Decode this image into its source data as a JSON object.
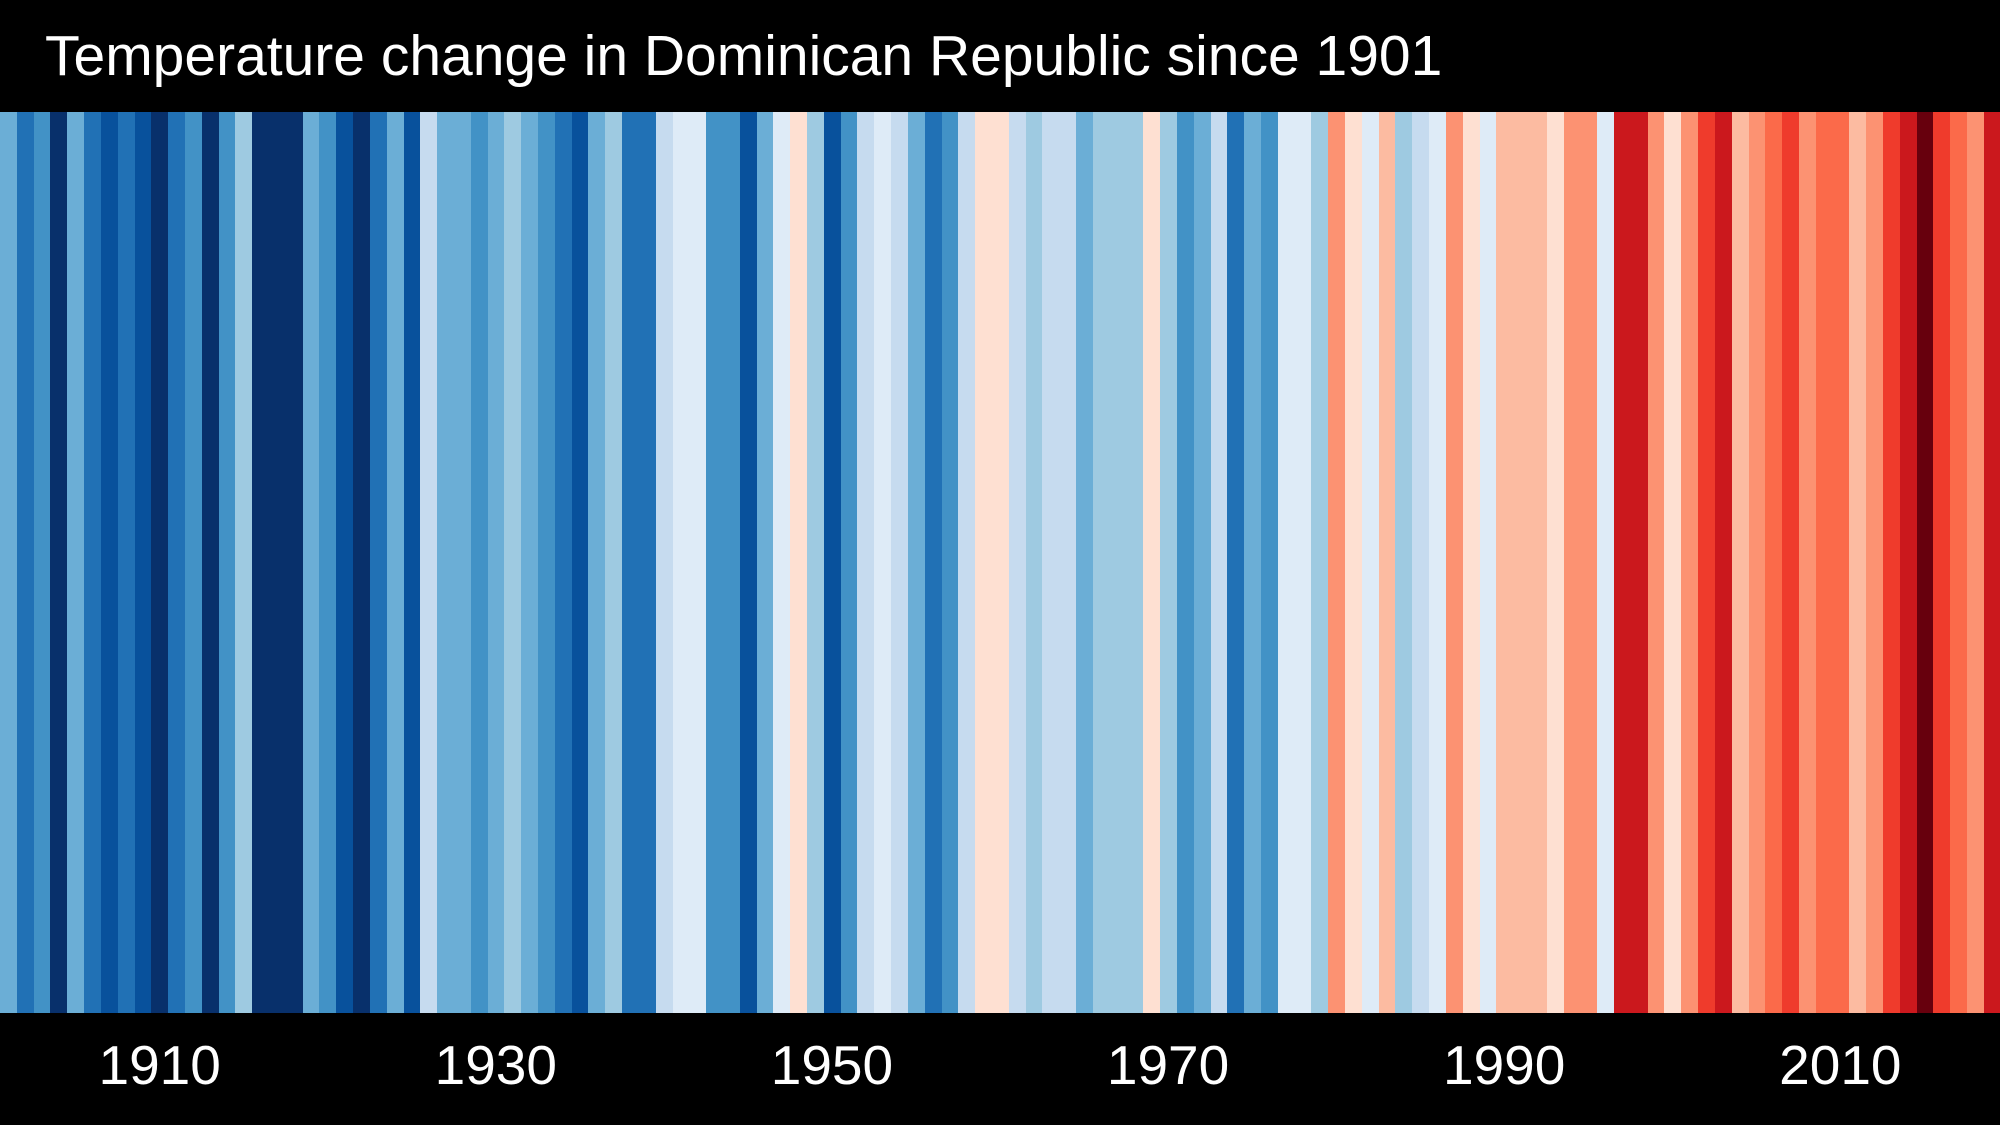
{
  "header": {
    "title": "Temperature change in Dominican Republic since 1901"
  },
  "colors": {
    "background": "#000000",
    "title_text": "#ffffff",
    "tick_text": "#ffffff"
  },
  "chart_data": {
    "type": "heatmap",
    "title": "Temperature change in Dominican Republic since 1901",
    "xlabel": "",
    "ylabel": "",
    "legend": "none",
    "grid": "off",
    "x_range": [
      1901,
      2019
    ],
    "x_ticks": [
      1910,
      1930,
      1950,
      1970,
      1990,
      2010
    ],
    "years": [
      1901,
      1902,
      1903,
      1904,
      1905,
      1906,
      1907,
      1908,
      1909,
      1910,
      1911,
      1912,
      1913,
      1914,
      1915,
      1916,
      1917,
      1918,
      1919,
      1920,
      1921,
      1922,
      1923,
      1924,
      1925,
      1926,
      1927,
      1928,
      1929,
      1930,
      1931,
      1932,
      1933,
      1934,
      1935,
      1936,
      1937,
      1938,
      1939,
      1940,
      1941,
      1942,
      1943,
      1944,
      1945,
      1946,
      1947,
      1948,
      1949,
      1950,
      1951,
      1952,
      1953,
      1954,
      1955,
      1956,
      1957,
      1958,
      1959,
      1960,
      1961,
      1962,
      1963,
      1964,
      1965,
      1966,
      1967,
      1968,
      1969,
      1970,
      1971,
      1972,
      1973,
      1974,
      1975,
      1976,
      1977,
      1978,
      1979,
      1980,
      1981,
      1982,
      1983,
      1984,
      1985,
      1986,
      1987,
      1988,
      1989,
      1990,
      1991,
      1992,
      1993,
      1994,
      1995,
      1996,
      1997,
      1998,
      1999,
      2000,
      2001,
      2002,
      2003,
      2004,
      2005,
      2006,
      2007,
      2008,
      2009,
      2010,
      2011,
      2012,
      2013,
      2014,
      2015,
      2016,
      2017,
      2018,
      2019
    ],
    "stripe_colors": [
      "#6baed6",
      "#2171b5",
      "#4292c6",
      "#08306b",
      "#6baed6",
      "#2171b5",
      "#08519c",
      "#2171b5",
      "#08519c",
      "#08306b",
      "#2171b5",
      "#4292c6",
      "#08306b",
      "#4292c6",
      "#9ecae1",
      "#08306b",
      "#08306b",
      "#08306b",
      "#6baed6",
      "#4292c6",
      "#08519c",
      "#08306b",
      "#2171b5",
      "#6baed6",
      "#08519c",
      "#c6dbef",
      "#6baed6",
      "#6baed6",
      "#4292c6",
      "#6baed6",
      "#9ecae1",
      "#6baed6",
      "#4292c6",
      "#2171b5",
      "#08519c",
      "#6baed6",
      "#9ecae1",
      "#2171b5",
      "#2171b5",
      "#c6dbef",
      "#deebf7",
      "#deebf7",
      "#4292c6",
      "#4292c6",
      "#08519c",
      "#6baed6",
      "#deebf7",
      "#fee0d2",
      "#9ecae1",
      "#08519c",
      "#4292c6",
      "#c6dbef",
      "#deebf7",
      "#c6dbef",
      "#6baed6",
      "#2171b5",
      "#4292c6",
      "#c6dbef",
      "#fee0d2",
      "#fee0d2",
      "#c6dbef",
      "#9ecae1",
      "#c6dbef",
      "#c6dbef",
      "#6baed6",
      "#9ecae1",
      "#9ecae1",
      "#9ecae1",
      "#fee0d2",
      "#9ecae1",
      "#4292c6",
      "#6baed6",
      "#c6dbef",
      "#2171b5",
      "#6baed6",
      "#4292c6",
      "#deebf7",
      "#deebf7",
      "#9ecae1",
      "#fc9272",
      "#fee0d2",
      "#deebf7",
      "#fcbba1",
      "#9ecae1",
      "#c6dbef",
      "#deebf7",
      "#fc9272",
      "#fee0d2",
      "#deebf7",
      "#fcbba1",
      "#fcbba1",
      "#fcbba1",
      "#fee0d2",
      "#fc9272",
      "#fc9272",
      "#deebf7",
      "#cb181d",
      "#cb181d",
      "#fc9272",
      "#fee0d2",
      "#fc9272",
      "#ef3b2c",
      "#cb181d",
      "#fcbba1",
      "#fc9272",
      "#fb6a4a",
      "#ef3b2c",
      "#fc9272",
      "#fb6a4a",
      "#fb6a4a",
      "#fcbba1",
      "#fc9272",
      "#ef3b2c",
      "#cb181d",
      "#67000d",
      "#ef3b2c",
      "#fb6a4a",
      "#fc9272",
      "#cb181d"
    ]
  }
}
